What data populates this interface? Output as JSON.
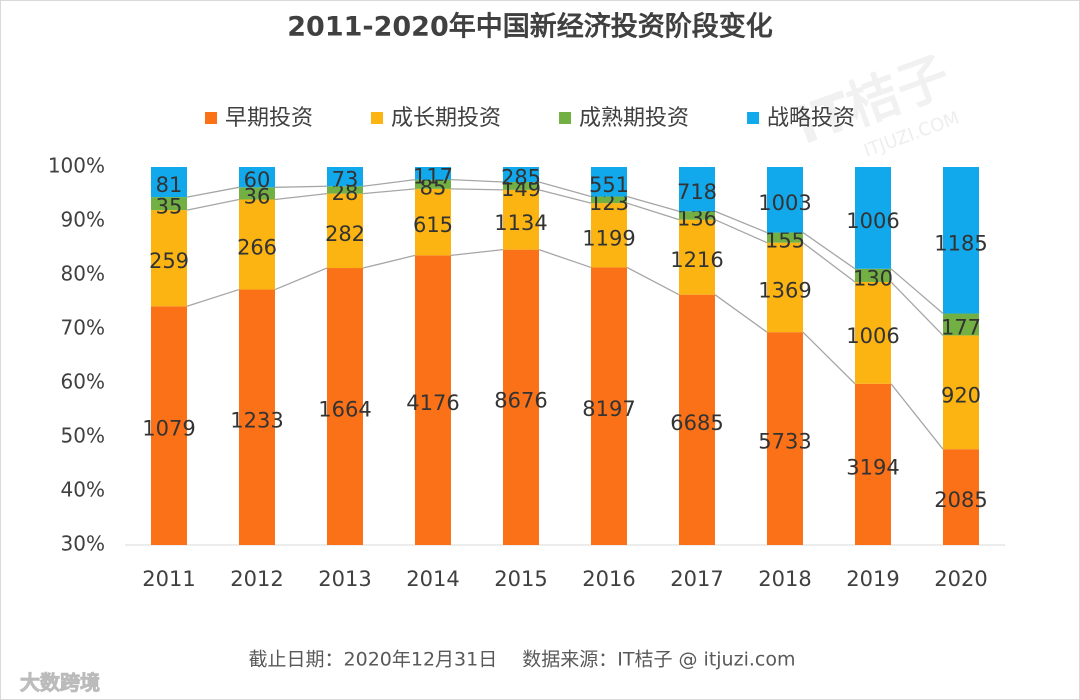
{
  "chart_data": {
    "type": "bar",
    "stack": "percent",
    "title": "2011-2020年中国新经济投资阶段变化",
    "categories": [
      "2011",
      "2012",
      "2013",
      "2014",
      "2015",
      "2016",
      "2017",
      "2018",
      "2019",
      "2020"
    ],
    "series": [
      {
        "name": "早期投资",
        "color": "#fa7118",
        "values": [
          1079,
          1233,
          1664,
          4176,
          8676,
          8197,
          6685,
          5733,
          3194,
          2085
        ]
      },
      {
        "name": "成长期投资",
        "color": "#fbb412",
        "values": [
          259,
          266,
          282,
          615,
          1134,
          1199,
          1216,
          1369,
          1006,
          920
        ]
      },
      {
        "name": "成熟期投资",
        "color": "#72b043",
        "values": [
          35,
          36,
          28,
          85,
          149,
          123,
          136,
          155,
          130,
          177
        ]
      },
      {
        "name": "战略投资",
        "color": "#12a8ec",
        "values": [
          81,
          60,
          73,
          117,
          285,
          551,
          718,
          1003,
          1006,
          1185
        ]
      }
    ],
    "ylim": [
      30,
      100
    ],
    "yticks": [
      {
        "value": 30,
        "label": "30%"
      },
      {
        "value": 40,
        "label": "40%"
      },
      {
        "value": 50,
        "label": "50%"
      },
      {
        "value": 60,
        "label": "60%"
      },
      {
        "value": 70,
        "label": "70%"
      },
      {
        "value": 80,
        "label": "80%"
      },
      {
        "value": 90,
        "label": "90%"
      },
      {
        "value": 100,
        "label": "100%"
      }
    ],
    "legend": "top",
    "footer": "截止日期：2020年12月31日　 数据来源：IT桔子 @ itjuzi.com",
    "watermarks": [
      "IT桔子",
      "ITJUZI.COM",
      "大数跨境"
    ]
  }
}
